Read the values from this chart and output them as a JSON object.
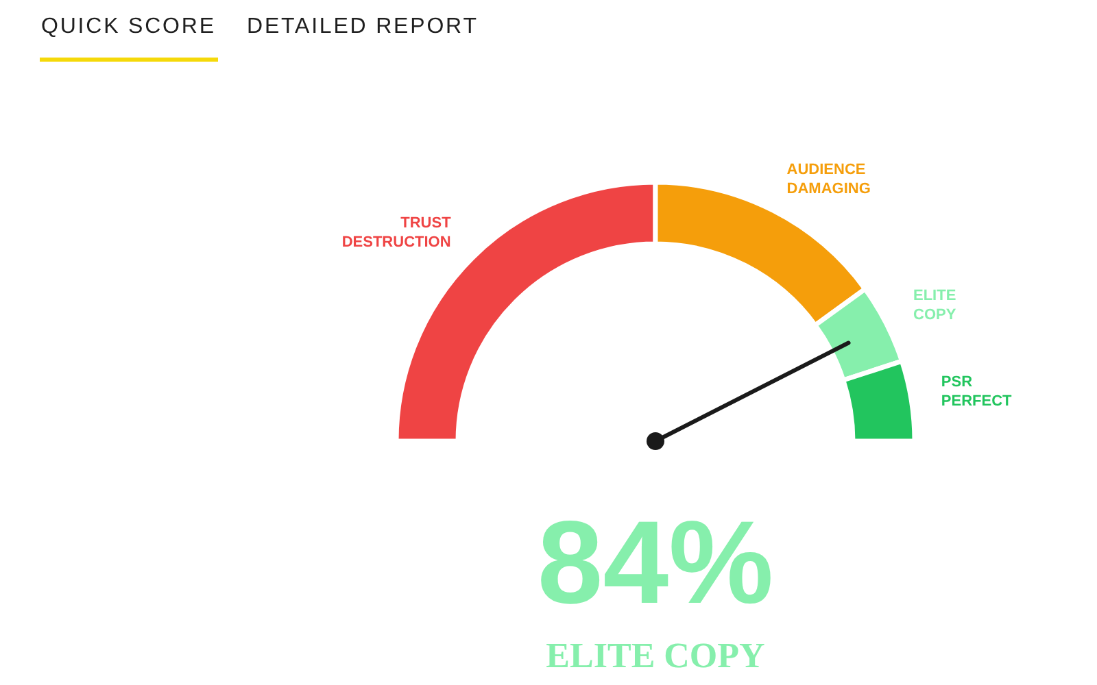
{
  "chart_data": {
    "type": "donut",
    "categories": [
      "TRUST DESTRUCTION",
      "AUDIENCE DAMAGING",
      "ELITE COPY",
      "PSR PERFECT"
    ],
    "values": [
      50,
      30,
      10,
      10
    ],
    "colors": [
      "#ef4444",
      "#f59e0b",
      "#86efac",
      "#22c55e"
    ],
    "needle": "ELITE COPY",
    "annotations": [
      "QUICK SCORE",
      "DETAILED REPORT",
      "84%",
      "ELITE COPY"
    ]
  }
}
